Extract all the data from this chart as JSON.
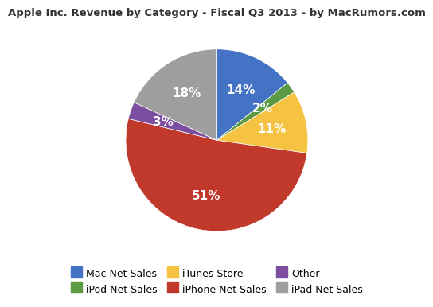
{
  "title": "Apple Inc. Revenue by Category - Fiscal Q3 2013 - by MacRumors.com",
  "slices": [
    {
      "label": "Mac Net Sales",
      "value": 14,
      "color": "#4472C4"
    },
    {
      "label": "iPod Net Sales",
      "value": 2,
      "color": "#5B9B44"
    },
    {
      "label": "iTunes Store",
      "value": 11,
      "color": "#F5C242"
    },
    {
      "label": "iPhone Net Sales",
      "value": 51,
      "color": "#C0392B"
    },
    {
      "label": "Other",
      "value": 3,
      "color": "#7B4EA0"
    },
    {
      "label": "iPad Net Sales",
      "value": 18,
      "color": "#9E9E9E"
    }
  ],
  "legend_order": [
    "Mac Net Sales",
    "iPod Net Sales",
    "iTunes Store",
    "iPhone Net Sales",
    "Other",
    "iPad Net Sales"
  ],
  "title_fontsize": 9.5,
  "label_fontsize": 11,
  "legend_fontsize": 9,
  "background_color": "#ffffff",
  "startangle": 90
}
